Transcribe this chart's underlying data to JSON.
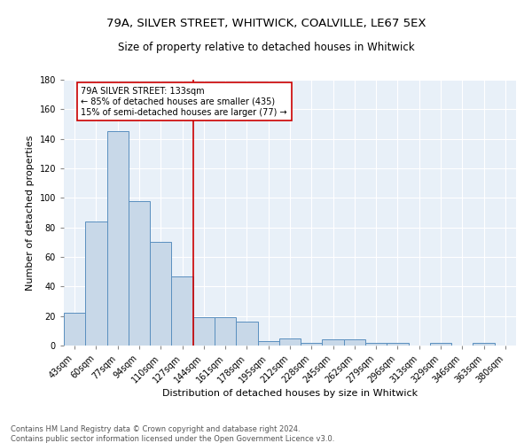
{
  "title1": "79A, SILVER STREET, WHITWICK, COALVILLE, LE67 5EX",
  "title2": "Size of property relative to detached houses in Whitwick",
  "xlabel": "Distribution of detached houses by size in Whitwick",
  "ylabel": "Number of detached properties",
  "categories": [
    "43sqm",
    "60sqm",
    "77sqm",
    "94sqm",
    "110sqm",
    "127sqm",
    "144sqm",
    "161sqm",
    "178sqm",
    "195sqm",
    "212sqm",
    "228sqm",
    "245sqm",
    "262sqm",
    "279sqm",
    "296sqm",
    "313sqm",
    "329sqm",
    "346sqm",
    "363sqm",
    "380sqm"
  ],
  "values": [
    22,
    84,
    145,
    98,
    70,
    47,
    19,
    19,
    16,
    3,
    5,
    2,
    4,
    4,
    2,
    2,
    0,
    2,
    0,
    2,
    0
  ],
  "bar_color": "#c8d8e8",
  "bar_edge_color": "#5a8fbf",
  "vline_x": 5.5,
  "vline_color": "#cc0000",
  "annotation_line1": "79A SILVER STREET: 133sqm",
  "annotation_line2": "← 85% of detached houses are smaller (435)",
  "annotation_line3": "15% of semi-detached houses are larger (77) →",
  "annotation_box_color": "#ffffff",
  "annotation_box_edge": "#cc0000",
  "ylim": [
    0,
    180
  ],
  "yticks": [
    0,
    20,
    40,
    60,
    80,
    100,
    120,
    140,
    160,
    180
  ],
  "bg_color": "#e8f0f8",
  "footer_text": "Contains HM Land Registry data © Crown copyright and database right 2024.\nContains public sector information licensed under the Open Government Licence v3.0.",
  "title1_fontsize": 9.5,
  "title2_fontsize": 8.5,
  "xlabel_fontsize": 8,
  "ylabel_fontsize": 8,
  "tick_fontsize": 7,
  "annotation_fontsize": 7,
  "footer_fontsize": 6
}
